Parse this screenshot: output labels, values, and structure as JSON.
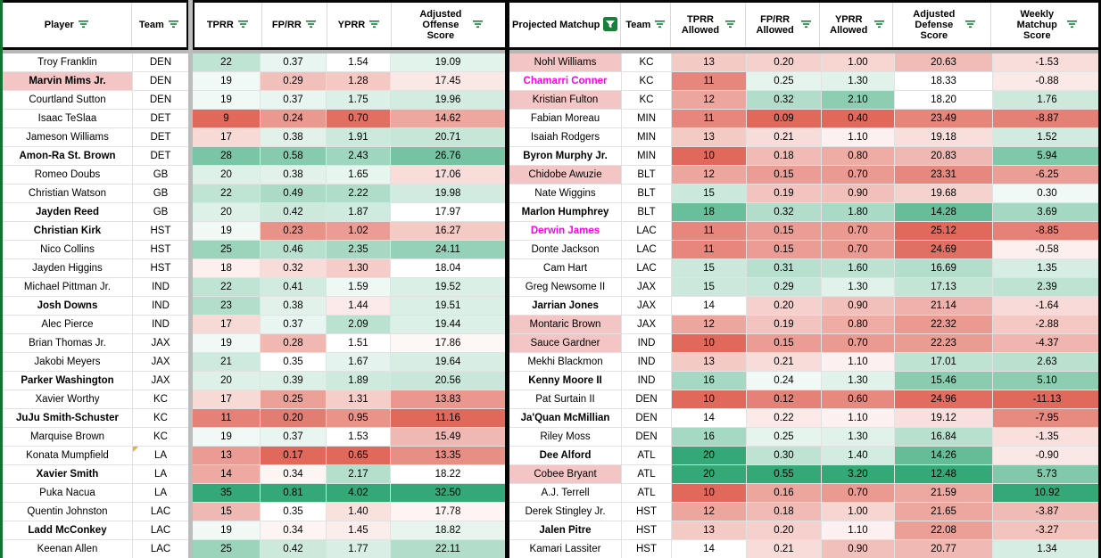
{
  "colors": {
    "scale_green": "#35a877",
    "scale_red": "#e0695c",
    "name_pink_bg": "#f3c5c4",
    "magenta_text": "#ff00ee",
    "filter_icon_green": "#188038",
    "range_border_green": "#137333",
    "frozen_divider_gray": "#b7b7b7",
    "table_border_black": "#060606",
    "note_corner_orange": "#f8a826"
  },
  "icons": {
    "filter": "filter-funnel-icon",
    "filter_active": "filter-funnel-active-icon",
    "note": "note-corner-marker"
  },
  "left_table": {
    "headers": [
      {
        "label": "Player"
      },
      {
        "label": "Team"
      },
      {
        "label": "TPRR"
      },
      {
        "label": "FP/RR"
      },
      {
        "label": "YPRR"
      },
      {
        "label": "Adjusted Offense Score"
      }
    ],
    "scales": [
      {
        "red": 9,
        "white": 18.5,
        "green": 35
      },
      {
        "red": 0.17,
        "white": 0.345,
        "green": 0.81
      },
      {
        "red": 0.65,
        "white": 1.5,
        "green": 4.02
      },
      {
        "red": 11.16,
        "white": 18.0,
        "green": 32.5
      }
    ],
    "rows": [
      {
        "name": "Troy Franklin",
        "team": "DEN",
        "style": "plain",
        "stats": [
          "22",
          "0.37",
          "1.54",
          "19.09"
        ]
      },
      {
        "name": "Marvin Mims Jr.",
        "team": "DEN",
        "style": "bold_pink",
        "stats": [
          "19",
          "0.29",
          "1.28",
          "17.45"
        ]
      },
      {
        "name": "Courtland Sutton",
        "team": "DEN",
        "style": "plain",
        "stats": [
          "19",
          "0.37",
          "1.75",
          "19.96"
        ]
      },
      {
        "name": "Isaac TeSlaa",
        "team": "DET",
        "style": "plain",
        "stats": [
          "9",
          "0.24",
          "0.70",
          "14.62"
        ]
      },
      {
        "name": "Jameson Williams",
        "team": "DET",
        "style": "plain",
        "stats": [
          "17",
          "0.38",
          "1.91",
          "20.71"
        ]
      },
      {
        "name": "Amon-Ra St. Brown",
        "team": "DET",
        "style": "bold",
        "stats": [
          "28",
          "0.58",
          "2.43",
          "26.76"
        ]
      },
      {
        "name": "Romeo Doubs",
        "team": "GB",
        "style": "plain",
        "stats": [
          "20",
          "0.38",
          "1.65",
          "17.06"
        ]
      },
      {
        "name": "Christian Watson",
        "team": "GB",
        "style": "plain",
        "stats": [
          "22",
          "0.49",
          "2.22",
          "19.98"
        ]
      },
      {
        "name": "Jayden Reed",
        "team": "GB",
        "style": "bold",
        "stats": [
          "20",
          "0.42",
          "1.87",
          "17.97"
        ]
      },
      {
        "name": "Christian Kirk",
        "team": "HST",
        "style": "bold",
        "stats": [
          "19",
          "0.23",
          "1.02",
          "16.27"
        ]
      },
      {
        "name": "Nico Collins",
        "team": "HST",
        "style": "plain",
        "stats": [
          "25",
          "0.46",
          "2.35",
          "24.11"
        ]
      },
      {
        "name": "Jayden Higgins",
        "team": "HST",
        "style": "plain",
        "stats": [
          "18",
          "0.32",
          "1.30",
          "18.04"
        ]
      },
      {
        "name": "Michael Pittman Jr.",
        "team": "IND",
        "style": "plain",
        "stats": [
          "22",
          "0.41",
          "1.59",
          "19.52"
        ]
      },
      {
        "name": "Josh Downs",
        "team": "IND",
        "style": "bold",
        "stats": [
          "23",
          "0.38",
          "1.44",
          "19.51"
        ]
      },
      {
        "name": "Alec Pierce",
        "team": "IND",
        "style": "plain",
        "stats": [
          "17",
          "0.37",
          "2.09",
          "19.44"
        ]
      },
      {
        "name": "Brian Thomas Jr.",
        "team": "JAX",
        "style": "plain",
        "stats": [
          "19",
          "0.28",
          "1.51",
          "17.86"
        ]
      },
      {
        "name": "Jakobi Meyers",
        "team": "JAX",
        "style": "plain",
        "stats": [
          "21",
          "0.35",
          "1.67",
          "19.64"
        ]
      },
      {
        "name": "Parker Washington",
        "team": "JAX",
        "style": "bold",
        "stats": [
          "20",
          "0.39",
          "1.89",
          "20.56"
        ]
      },
      {
        "name": "Xavier Worthy",
        "team": "KC",
        "style": "plain",
        "stats": [
          "17",
          "0.25",
          "1.31",
          "13.83"
        ]
      },
      {
        "name": "JuJu Smith-Schuster",
        "team": "KC",
        "style": "bold",
        "stats": [
          "11",
          "0.20",
          "0.95",
          "11.16"
        ]
      },
      {
        "name": "Marquise Brown",
        "team": "KC",
        "style": "plain",
        "stats": [
          "19",
          "0.37",
          "1.53",
          "15.49"
        ]
      },
      {
        "name": "Konata Mumpfield",
        "team": "LA",
        "style": "plain",
        "note": true,
        "stats": [
          "13",
          "0.17",
          "0.65",
          "13.35"
        ]
      },
      {
        "name": "Xavier Smith",
        "team": "LA",
        "style": "bold",
        "stats": [
          "14",
          "0.34",
          "2.17",
          "18.22"
        ]
      },
      {
        "name": "Puka Nacua",
        "team": "LA",
        "style": "plain",
        "stats": [
          "35",
          "0.81",
          "4.02",
          "32.50"
        ]
      },
      {
        "name": "Quentin Johnston",
        "team": "LAC",
        "style": "plain",
        "stats": [
          "15",
          "0.35",
          "1.40",
          "17.78"
        ]
      },
      {
        "name": "Ladd McConkey",
        "team": "LAC",
        "style": "bold",
        "stats": [
          "19",
          "0.34",
          "1.45",
          "18.82"
        ]
      },
      {
        "name": "Keenan Allen",
        "team": "LAC",
        "style": "plain",
        "stats": [
          "25",
          "0.42",
          "1.77",
          "22.11"
        ]
      }
    ]
  },
  "right_table": {
    "headers": [
      {
        "label": "Projected Matchup",
        "filter_active": true
      },
      {
        "label": "Team"
      },
      {
        "label": "TPRR Allowed"
      },
      {
        "label": "FP/RR Allowed"
      },
      {
        "label": "YPRR Allowed"
      },
      {
        "label": "Adjusted Defense Score"
      },
      {
        "label": "Weekly Matchup Score"
      }
    ],
    "scales": [
      {
        "red": 10,
        "white": 14,
        "green": 20
      },
      {
        "red": 0.09,
        "white": 0.23,
        "green": 0.55
      },
      {
        "red": 0.4,
        "white": 1.13,
        "green": 3.2
      },
      {
        "red": 25.12,
        "white": 18.3,
        "green": 12.48
      },
      {
        "red": -11.13,
        "white": 0,
        "green": 10.92
      }
    ],
    "rows": [
      {
        "name": "Nohl Williams",
        "team": "KC",
        "style": "pink",
        "stats": [
          "13",
          "0.20",
          "1.00",
          "20.63",
          "-1.53"
        ]
      },
      {
        "name": "Chamarri Conner",
        "team": "KC",
        "style": "magenta",
        "stats": [
          "11",
          "0.25",
          "1.30",
          "18.33",
          "-0.88"
        ]
      },
      {
        "name": "Kristian Fulton",
        "team": "KC",
        "style": "pink",
        "stats": [
          "12",
          "0.32",
          "2.10",
          "18.20",
          "1.76"
        ]
      },
      {
        "name": "Fabian Moreau",
        "team": "MIN",
        "style": "plain",
        "stats": [
          "11",
          "0.09",
          "0.40",
          "23.49",
          "-8.87"
        ]
      },
      {
        "name": "Isaiah Rodgers",
        "team": "MIN",
        "style": "plain",
        "stats": [
          "13",
          "0.21",
          "1.10",
          "19.18",
          "1.52"
        ]
      },
      {
        "name": "Byron Murphy Jr.",
        "team": "MIN",
        "style": "bold",
        "stats": [
          "10",
          "0.18",
          "0.80",
          "20.83",
          "5.94"
        ]
      },
      {
        "name": "Chidobe Awuzie",
        "team": "BLT",
        "style": "pink",
        "stats": [
          "12",
          "0.15",
          "0.70",
          "23.31",
          "-6.25"
        ]
      },
      {
        "name": "Nate Wiggins",
        "team": "BLT",
        "style": "plain",
        "stats": [
          "15",
          "0.19",
          "0.90",
          "19.68",
          "0.30"
        ]
      },
      {
        "name": "Marlon Humphrey",
        "team": "BLT",
        "style": "bold",
        "stats": [
          "18",
          "0.32",
          "1.80",
          "14.28",
          "3.69"
        ]
      },
      {
        "name": "Derwin James",
        "team": "LAC",
        "style": "magenta",
        "stats": [
          "11",
          "0.15",
          "0.70",
          "25.12",
          "-8.85"
        ]
      },
      {
        "name": "Donte Jackson",
        "team": "LAC",
        "style": "plain",
        "stats": [
          "11",
          "0.15",
          "0.70",
          "24.69",
          "-0.58"
        ]
      },
      {
        "name": "Cam Hart",
        "team": "LAC",
        "style": "plain",
        "stats": [
          "15",
          "0.31",
          "1.60",
          "16.69",
          "1.35"
        ]
      },
      {
        "name": "Greg Newsome II",
        "team": "JAX",
        "style": "plain",
        "stats": [
          "15",
          "0.29",
          "1.30",
          "17.13",
          "2.39"
        ]
      },
      {
        "name": "Jarrian Jones",
        "team": "JAX",
        "style": "bold",
        "stats": [
          "14",
          "0.20",
          "0.90",
          "21.14",
          "-1.64"
        ]
      },
      {
        "name": "Montaric Brown",
        "team": "JAX",
        "style": "pink",
        "stats": [
          "12",
          "0.19",
          "0.80",
          "22.32",
          "-2.88"
        ]
      },
      {
        "name": "Sauce Gardner",
        "team": "IND",
        "style": "pink",
        "stats": [
          "10",
          "0.15",
          "0.70",
          "22.23",
          "-4.37"
        ]
      },
      {
        "name": "Mekhi Blackmon",
        "team": "IND",
        "style": "plain",
        "stats": [
          "13",
          "0.21",
          "1.10",
          "17.01",
          "2.63"
        ]
      },
      {
        "name": "Kenny Moore II",
        "team": "IND",
        "style": "bold",
        "stats": [
          "16",
          "0.24",
          "1.30",
          "15.46",
          "5.10"
        ]
      },
      {
        "name": "Pat Surtain II",
        "team": "DEN",
        "style": "plain",
        "stats": [
          "10",
          "0.12",
          "0.60",
          "24.96",
          "-11.13"
        ]
      },
      {
        "name": "Ja'Quan McMillian",
        "team": "DEN",
        "style": "bold",
        "stats": [
          "14",
          "0.22",
          "1.10",
          "19.12",
          "-7.95"
        ]
      },
      {
        "name": "Riley Moss",
        "team": "DEN",
        "style": "plain",
        "stats": [
          "16",
          "0.25",
          "1.30",
          "16.84",
          "-1.35"
        ]
      },
      {
        "name": "Dee Alford",
        "team": "ATL",
        "style": "bold",
        "stats": [
          "20",
          "0.30",
          "1.40",
          "14.26",
          "-0.90"
        ]
      },
      {
        "name": "Cobee Bryant",
        "team": "ATL",
        "style": "pink",
        "stats": [
          "20",
          "0.55",
          "3.20",
          "12.48",
          "5.73"
        ]
      },
      {
        "name": "A.J. Terrell",
        "team": "ATL",
        "style": "plain",
        "stats": [
          "10",
          "0.16",
          "0.70",
          "21.59",
          "10.92"
        ]
      },
      {
        "name": "Derek Stingley Jr.",
        "team": "HST",
        "style": "plain",
        "stats": [
          "12",
          "0.18",
          "1.00",
          "21.65",
          "-3.87"
        ]
      },
      {
        "name": "Jalen Pitre",
        "team": "HST",
        "style": "bold",
        "stats": [
          "13",
          "0.20",
          "1.10",
          "22.08",
          "-3.27"
        ]
      },
      {
        "name": "Kamari Lassiter",
        "team": "HST",
        "style": "plain",
        "stats": [
          "14",
          "0.21",
          "0.90",
          "20.77",
          "1.34"
        ]
      }
    ]
  }
}
